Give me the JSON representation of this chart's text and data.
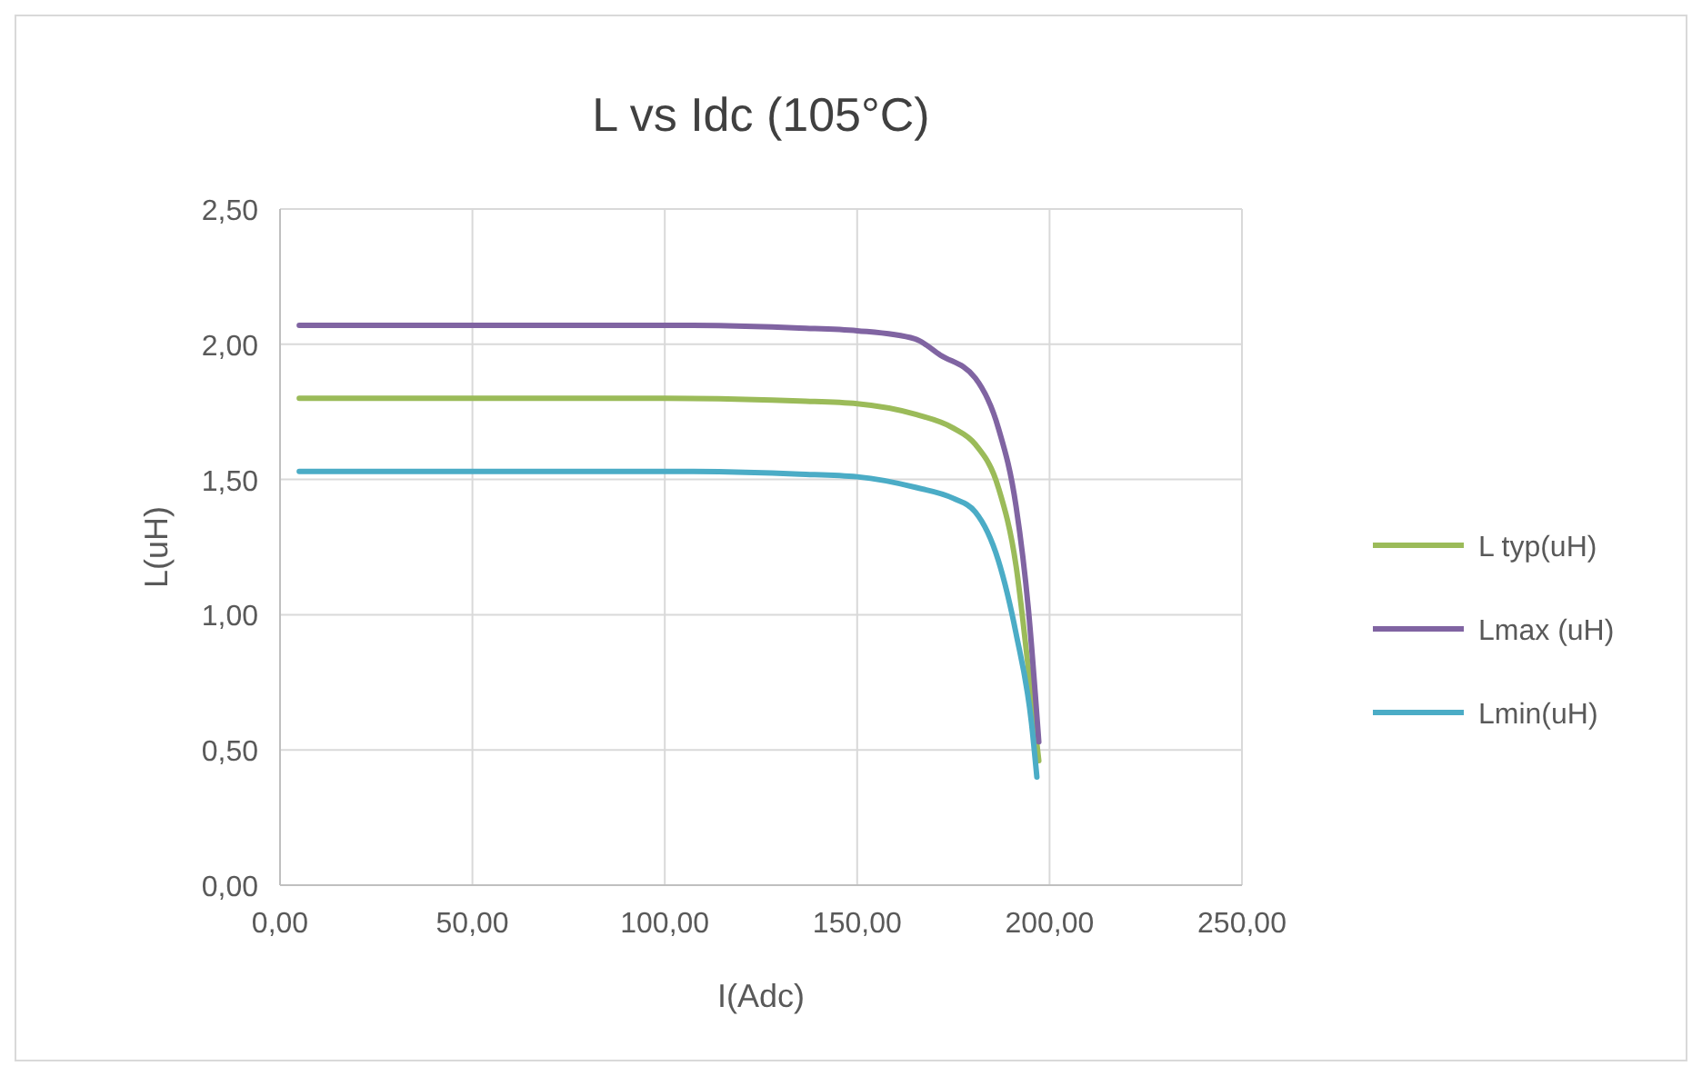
{
  "chart_data": {
    "type": "line",
    "title": "L vs Idc (105°C)",
    "xlabel": "I(Adc)",
    "ylabel": "L(uH)",
    "xlim": [
      0,
      250
    ],
    "xticks": [
      {
        "value": 0,
        "label": "0,00"
      },
      {
        "value": 50,
        "label": "50,00"
      },
      {
        "value": 100,
        "label": "100,00"
      },
      {
        "value": 150,
        "label": "150,00"
      },
      {
        "value": 200,
        "label": "200,00"
      },
      {
        "value": 250,
        "label": "250,00"
      }
    ],
    "ylim": [
      0,
      2.5
    ],
    "yticks": [
      {
        "value": 0,
        "label": "0,00"
      },
      {
        "value": 0.5,
        "label": "0,50"
      },
      {
        "value": 1,
        "label": "1,00"
      },
      {
        "value": 1.5,
        "label": "1,50"
      },
      {
        "value": 2,
        "label": "2,00"
      },
      {
        "value": 2.5,
        "label": "2,50"
      }
    ],
    "grid": true,
    "legend": "right",
    "marker": "none",
    "line_style": "solid",
    "series": [
      {
        "name": "L typ(uH)",
        "color": "#9bbb59",
        "x": [
          5,
          50,
          100,
          135,
          150,
          165.4,
          175,
          180.7,
          186.7,
          191.3,
          194.5,
          197.2
        ],
        "values": [
          1.8,
          1.8,
          1.8,
          1.79,
          1.78,
          1.74,
          1.69,
          1.63,
          1.47,
          1.18,
          0.8,
          0.46
        ]
      },
      {
        "name": "Lmax (uH)",
        "color": "#8064a2",
        "x": [
          5,
          50,
          100,
          135,
          150,
          165,
          171.6,
          180.7,
          186.7,
          191.3,
          194.5,
          197.2
        ],
        "values": [
          2.07,
          2.07,
          2.07,
          2.06,
          2.05,
          2.02,
          1.96,
          1.875,
          1.69,
          1.4,
          1.02,
          0.53
        ]
      },
      {
        "name": "Lmin(uH)",
        "color": "#4bacc6",
        "x": [
          5,
          50,
          100,
          135,
          150,
          165.4,
          175,
          180.7,
          186.7,
          191.3,
          195.3,
          196.7
        ],
        "values": [
          1.53,
          1.53,
          1.53,
          1.52,
          1.51,
          1.47,
          1.43,
          1.38,
          1.2,
          0.93,
          0.6,
          0.4
        ]
      }
    ]
  }
}
